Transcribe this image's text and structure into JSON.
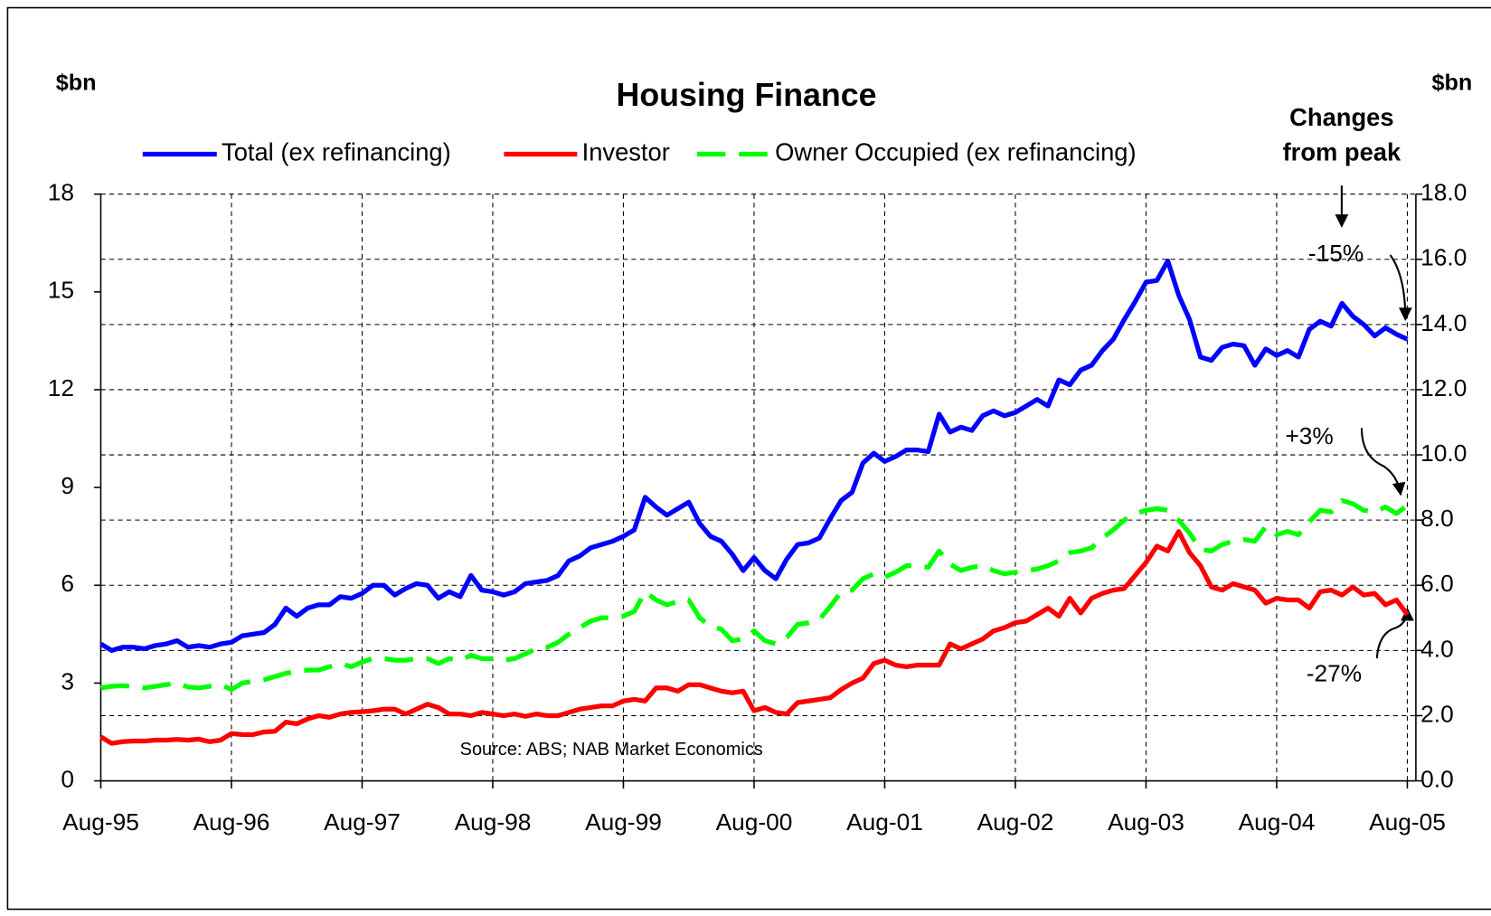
{
  "chart_data": {
    "type": "line",
    "title": "Housing Finance",
    "y_label": "$bn",
    "y2_label": "$bn",
    "annotation_title": [
      "Changes",
      "from peak"
    ],
    "annotations": [
      "-15%",
      "+3%",
      "-27%"
    ],
    "source": "Source: ABS; NAB Market Economics",
    "grid": true,
    "legend": "top",
    "categories": [
      "Aug-95",
      null,
      null,
      null,
      null,
      null,
      null,
      null,
      null,
      null,
      null,
      null,
      "Aug-96",
      null,
      null,
      null,
      null,
      null,
      null,
      null,
      null,
      null,
      null,
      null,
      "Aug-97",
      null,
      null,
      null,
      null,
      null,
      null,
      null,
      null,
      null,
      null,
      null,
      "Aug-98",
      null,
      null,
      null,
      null,
      null,
      null,
      null,
      null,
      null,
      null,
      null,
      "Aug-99",
      null,
      null,
      null,
      null,
      null,
      null,
      null,
      null,
      null,
      null,
      null,
      "Aug-00",
      null,
      null,
      null,
      null,
      null,
      null,
      null,
      null,
      null,
      null,
      null,
      "Aug-01",
      null,
      null,
      null,
      null,
      null,
      null,
      null,
      null,
      null,
      null,
      null,
      "Aug-02",
      null,
      null,
      null,
      null,
      null,
      null,
      null,
      null,
      null,
      null,
      null,
      "Aug-03",
      null,
      null,
      null,
      null,
      null,
      null,
      null,
      null,
      null,
      null,
      null,
      "Aug-04",
      null,
      null,
      null,
      null,
      null,
      null,
      null,
      null,
      null,
      null,
      null,
      "Aug-05"
    ],
    "ylim": [
      0,
      18
    ],
    "yticks": [
      0,
      3,
      6,
      9,
      12,
      15,
      18
    ],
    "y2lim": [
      0,
      18
    ],
    "y2ticks": [
      {
        "value": 0,
        "label": "0.0"
      },
      {
        "value": 2,
        "label": "2.0"
      },
      {
        "value": 4,
        "label": "4.0"
      },
      {
        "value": 6,
        "label": "6.0"
      },
      {
        "value": 8,
        "label": "8.0"
      },
      {
        "value": 10,
        "label": "10.0"
      },
      {
        "value": 12,
        "label": "12.0"
      },
      {
        "value": 14,
        "label": "14.0"
      },
      {
        "value": 16,
        "label": "16.0"
      },
      {
        "value": 18,
        "label": "18.0"
      }
    ],
    "series": [
      {
        "name": "Total (ex refinancing)",
        "color": "#0000ff",
        "line_style": "solid",
        "values": [
          4.2,
          4.0,
          4.1,
          4.1,
          4.05,
          4.15,
          4.2,
          4.3,
          4.1,
          4.15,
          4.1,
          4.2,
          4.25,
          4.45,
          4.5,
          4.55,
          4.8,
          5.3,
          5.05,
          5.3,
          5.4,
          5.4,
          5.65,
          5.6,
          5.75,
          6.0,
          6.0,
          5.7,
          5.9,
          6.05,
          6.0,
          5.6,
          5.8,
          5.65,
          6.3,
          5.85,
          5.8,
          5.7,
          5.8,
          6.05,
          6.1,
          6.15,
          6.3,
          6.75,
          6.9,
          7.15,
          7.25,
          7.35,
          7.5,
          7.7,
          8.7,
          8.4,
          8.15,
          8.35,
          8.55,
          7.9,
          7.5,
          7.35,
          6.95,
          6.45,
          6.85,
          6.45,
          6.2,
          6.8,
          7.25,
          7.3,
          7.45,
          8.05,
          8.6,
          8.85,
          9.75,
          10.05,
          9.8,
          9.95,
          10.15,
          10.15,
          10.1,
          11.25,
          10.7,
          10.85,
          10.75,
          11.2,
          11.35,
          11.2,
          11.3,
          11.5,
          11.7,
          11.5,
          12.3,
          12.15,
          12.6,
          12.75,
          13.2,
          13.55,
          14.15,
          14.7,
          15.3,
          15.35,
          15.95,
          14.9,
          14.15,
          13.0,
          12.9,
          13.3,
          13.4,
          13.35,
          12.75,
          13.25,
          13.05,
          13.2,
          13.0,
          13.85,
          14.1,
          13.95,
          14.65,
          14.25,
          14.0,
          13.65,
          13.9,
          13.7,
          13.55
        ]
      },
      {
        "name": "Investor",
        "color": "#ff0000",
        "line_style": "solid",
        "values": [
          1.35,
          1.15,
          1.2,
          1.22,
          1.22,
          1.25,
          1.25,
          1.27,
          1.25,
          1.28,
          1.2,
          1.25,
          1.45,
          1.42,
          1.42,
          1.5,
          1.52,
          1.8,
          1.75,
          1.9,
          2.0,
          1.95,
          2.05,
          2.1,
          2.12,
          2.15,
          2.2,
          2.2,
          2.05,
          2.2,
          2.35,
          2.25,
          2.05,
          2.05,
          2.0,
          2.1,
          2.05,
          2.0,
          2.05,
          1.98,
          2.05,
          2.0,
          2.0,
          2.1,
          2.2,
          2.25,
          2.3,
          2.3,
          2.45,
          2.5,
          2.45,
          2.85,
          2.85,
          2.75,
          2.95,
          2.95,
          2.85,
          2.75,
          2.7,
          2.75,
          2.15,
          2.25,
          2.1,
          2.05,
          2.4,
          2.45,
          2.5,
          2.55,
          2.8,
          3.0,
          3.15,
          3.6,
          3.7,
          3.55,
          3.5,
          3.55,
          3.55,
          3.55,
          4.2,
          4.05,
          4.2,
          4.35,
          4.6,
          4.7,
          4.85,
          4.9,
          5.1,
          5.3,
          5.05,
          5.6,
          5.15,
          5.6,
          5.75,
          5.85,
          5.9,
          6.3,
          6.7,
          7.2,
          7.05,
          7.65,
          7.0,
          6.6,
          5.95,
          5.85,
          6.05,
          5.95,
          5.85,
          5.45,
          5.6,
          5.55,
          5.55,
          5.3,
          5.8,
          5.85,
          5.7,
          5.95,
          5.7,
          5.75,
          5.4,
          5.55,
          5.1
        ]
      },
      {
        "name": "Owner Occupied (ex refinancing)",
        "color": "#00ff00",
        "line_style": "dashed",
        "values": [
          2.85,
          2.9,
          2.92,
          2.9,
          2.85,
          2.9,
          2.95,
          3.0,
          2.88,
          2.85,
          2.9,
          2.95,
          2.8,
          3.0,
          3.05,
          3.1,
          3.2,
          3.3,
          3.35,
          3.4,
          3.4,
          3.5,
          3.6,
          3.5,
          3.65,
          3.75,
          3.75,
          3.7,
          3.7,
          3.75,
          3.75,
          3.6,
          3.75,
          3.7,
          3.85,
          3.75,
          3.75,
          3.7,
          3.75,
          3.9,
          4.05,
          4.1,
          4.25,
          4.5,
          4.7,
          4.9,
          5.0,
          5.0,
          5.05,
          5.2,
          5.8,
          5.55,
          5.4,
          5.5,
          5.55,
          5.0,
          4.75,
          4.65,
          4.3,
          4.35,
          4.6,
          4.3,
          4.2,
          4.4,
          4.8,
          4.85,
          4.95,
          5.35,
          5.8,
          5.85,
          6.2,
          6.35,
          6.25,
          6.4,
          6.6,
          6.6,
          6.55,
          7.05,
          6.65,
          6.45,
          6.55,
          6.6,
          6.45,
          6.35,
          6.4,
          6.45,
          6.5,
          6.6,
          6.75,
          7.0,
          7.05,
          7.15,
          7.45,
          7.7,
          8.0,
          8.2,
          8.3,
          8.35,
          8.3,
          8.0,
          7.6,
          7.1,
          7.05,
          7.25,
          7.35,
          7.4,
          7.35,
          7.8,
          7.55,
          7.65,
          7.55,
          7.95,
          8.3,
          8.25,
          8.6,
          8.5,
          8.3,
          8.25,
          8.4,
          8.2,
          8.45
        ]
      }
    ]
  }
}
